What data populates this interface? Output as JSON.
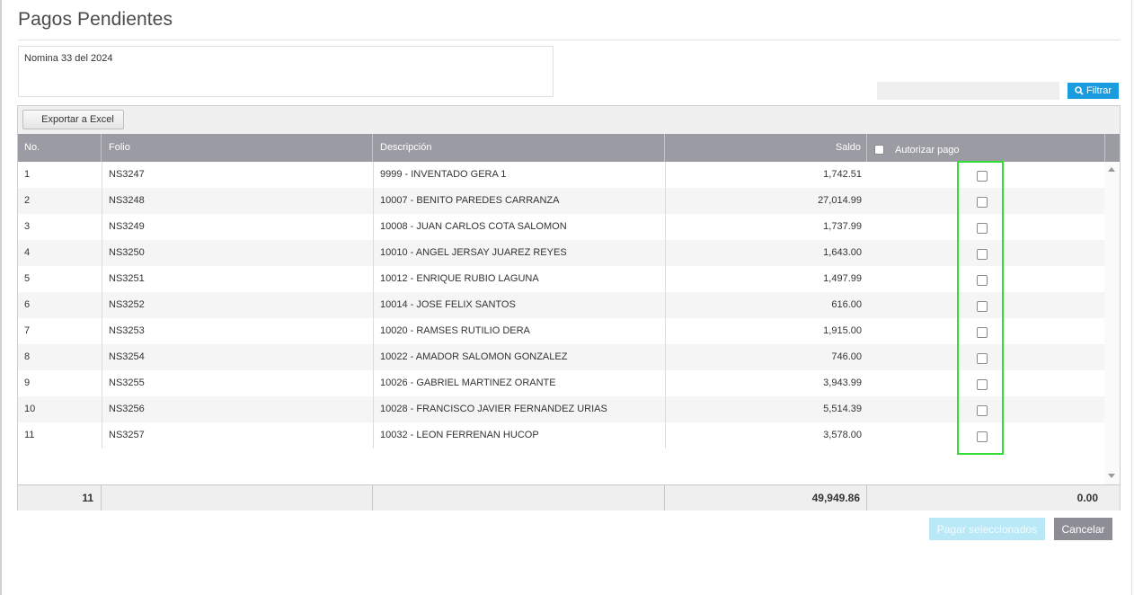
{
  "modal": {
    "title": "Pagos Pendientes",
    "description": "Nomina 33 del 2024",
    "filter_value": "",
    "filter_button": "Filtrar",
    "export_button": "Exportar a Excel",
    "pay_button": "Pagar seleccionados",
    "cancel_button": "Cancelar"
  },
  "table": {
    "columns": {
      "no": "No.",
      "folio": "Folio",
      "descripcion": "Descripción",
      "saldo": "Saldo",
      "autorizar": "Autorizar pago"
    },
    "rows": [
      {
        "no": "1",
        "folio": "NS3247",
        "descripcion": "9999 - INVENTADO GERA 1",
        "saldo": "1,742.51",
        "checked": false
      },
      {
        "no": "2",
        "folio": "NS3248",
        "descripcion": "10007 - BENITO PAREDES CARRANZA",
        "saldo": "27,014.99",
        "checked": false
      },
      {
        "no": "3",
        "folio": "NS3249",
        "descripcion": "10008 - JUAN CARLOS COTA SALOMON",
        "saldo": "1,737.99",
        "checked": false
      },
      {
        "no": "4",
        "folio": "NS3250",
        "descripcion": "10010 - ANGEL JERSAY JUAREZ REYES",
        "saldo": "1,643.00",
        "checked": false
      },
      {
        "no": "5",
        "folio": "NS3251",
        "descripcion": "10012 - ENRIQUE RUBIO LAGUNA",
        "saldo": "1,497.99",
        "checked": false
      },
      {
        "no": "6",
        "folio": "NS3252",
        "descripcion": "10014 - JOSE FELIX SANTOS",
        "saldo": "616.00",
        "checked": false
      },
      {
        "no": "7",
        "folio": "NS3253",
        "descripcion": "10020 - RAMSES RUTILIO DERA",
        "saldo": "1,915.00",
        "checked": false
      },
      {
        "no": "8",
        "folio": "NS3254",
        "descripcion": "10022 - AMADOR SALOMON GONZALEZ",
        "saldo": "746.00",
        "checked": false
      },
      {
        "no": "9",
        "folio": "NS3255",
        "descripcion": "10026 - GABRIEL MARTINEZ ORANTE",
        "saldo": "3,943.99",
        "checked": false
      },
      {
        "no": "10",
        "folio": "NS3256",
        "descripcion": "10028 - FRANCISCO JAVIER FERNANDEZ URIAS",
        "saldo": "5,514.39",
        "checked": false
      },
      {
        "no": "11",
        "folio": "NS3257",
        "descripcion": "10032 - LEON FERRENAN HUCOP",
        "saldo": "3,578.00",
        "checked": false
      }
    ],
    "footer": {
      "count": "11",
      "total_saldo": "49,949.86",
      "total_autorizado": "0.00"
    }
  },
  "icons": {
    "search": "search-icon",
    "scroll_up": "scroll-up-arrow-icon",
    "scroll_down": "scroll-down-arrow-icon"
  },
  "colors": {
    "filter_button": "#1a9de0",
    "header_bg": "#9b9ba3",
    "highlight": "#33dd33",
    "pay_button_disabled": "#b9e8f6",
    "cancel_button": "#8d8d96"
  }
}
